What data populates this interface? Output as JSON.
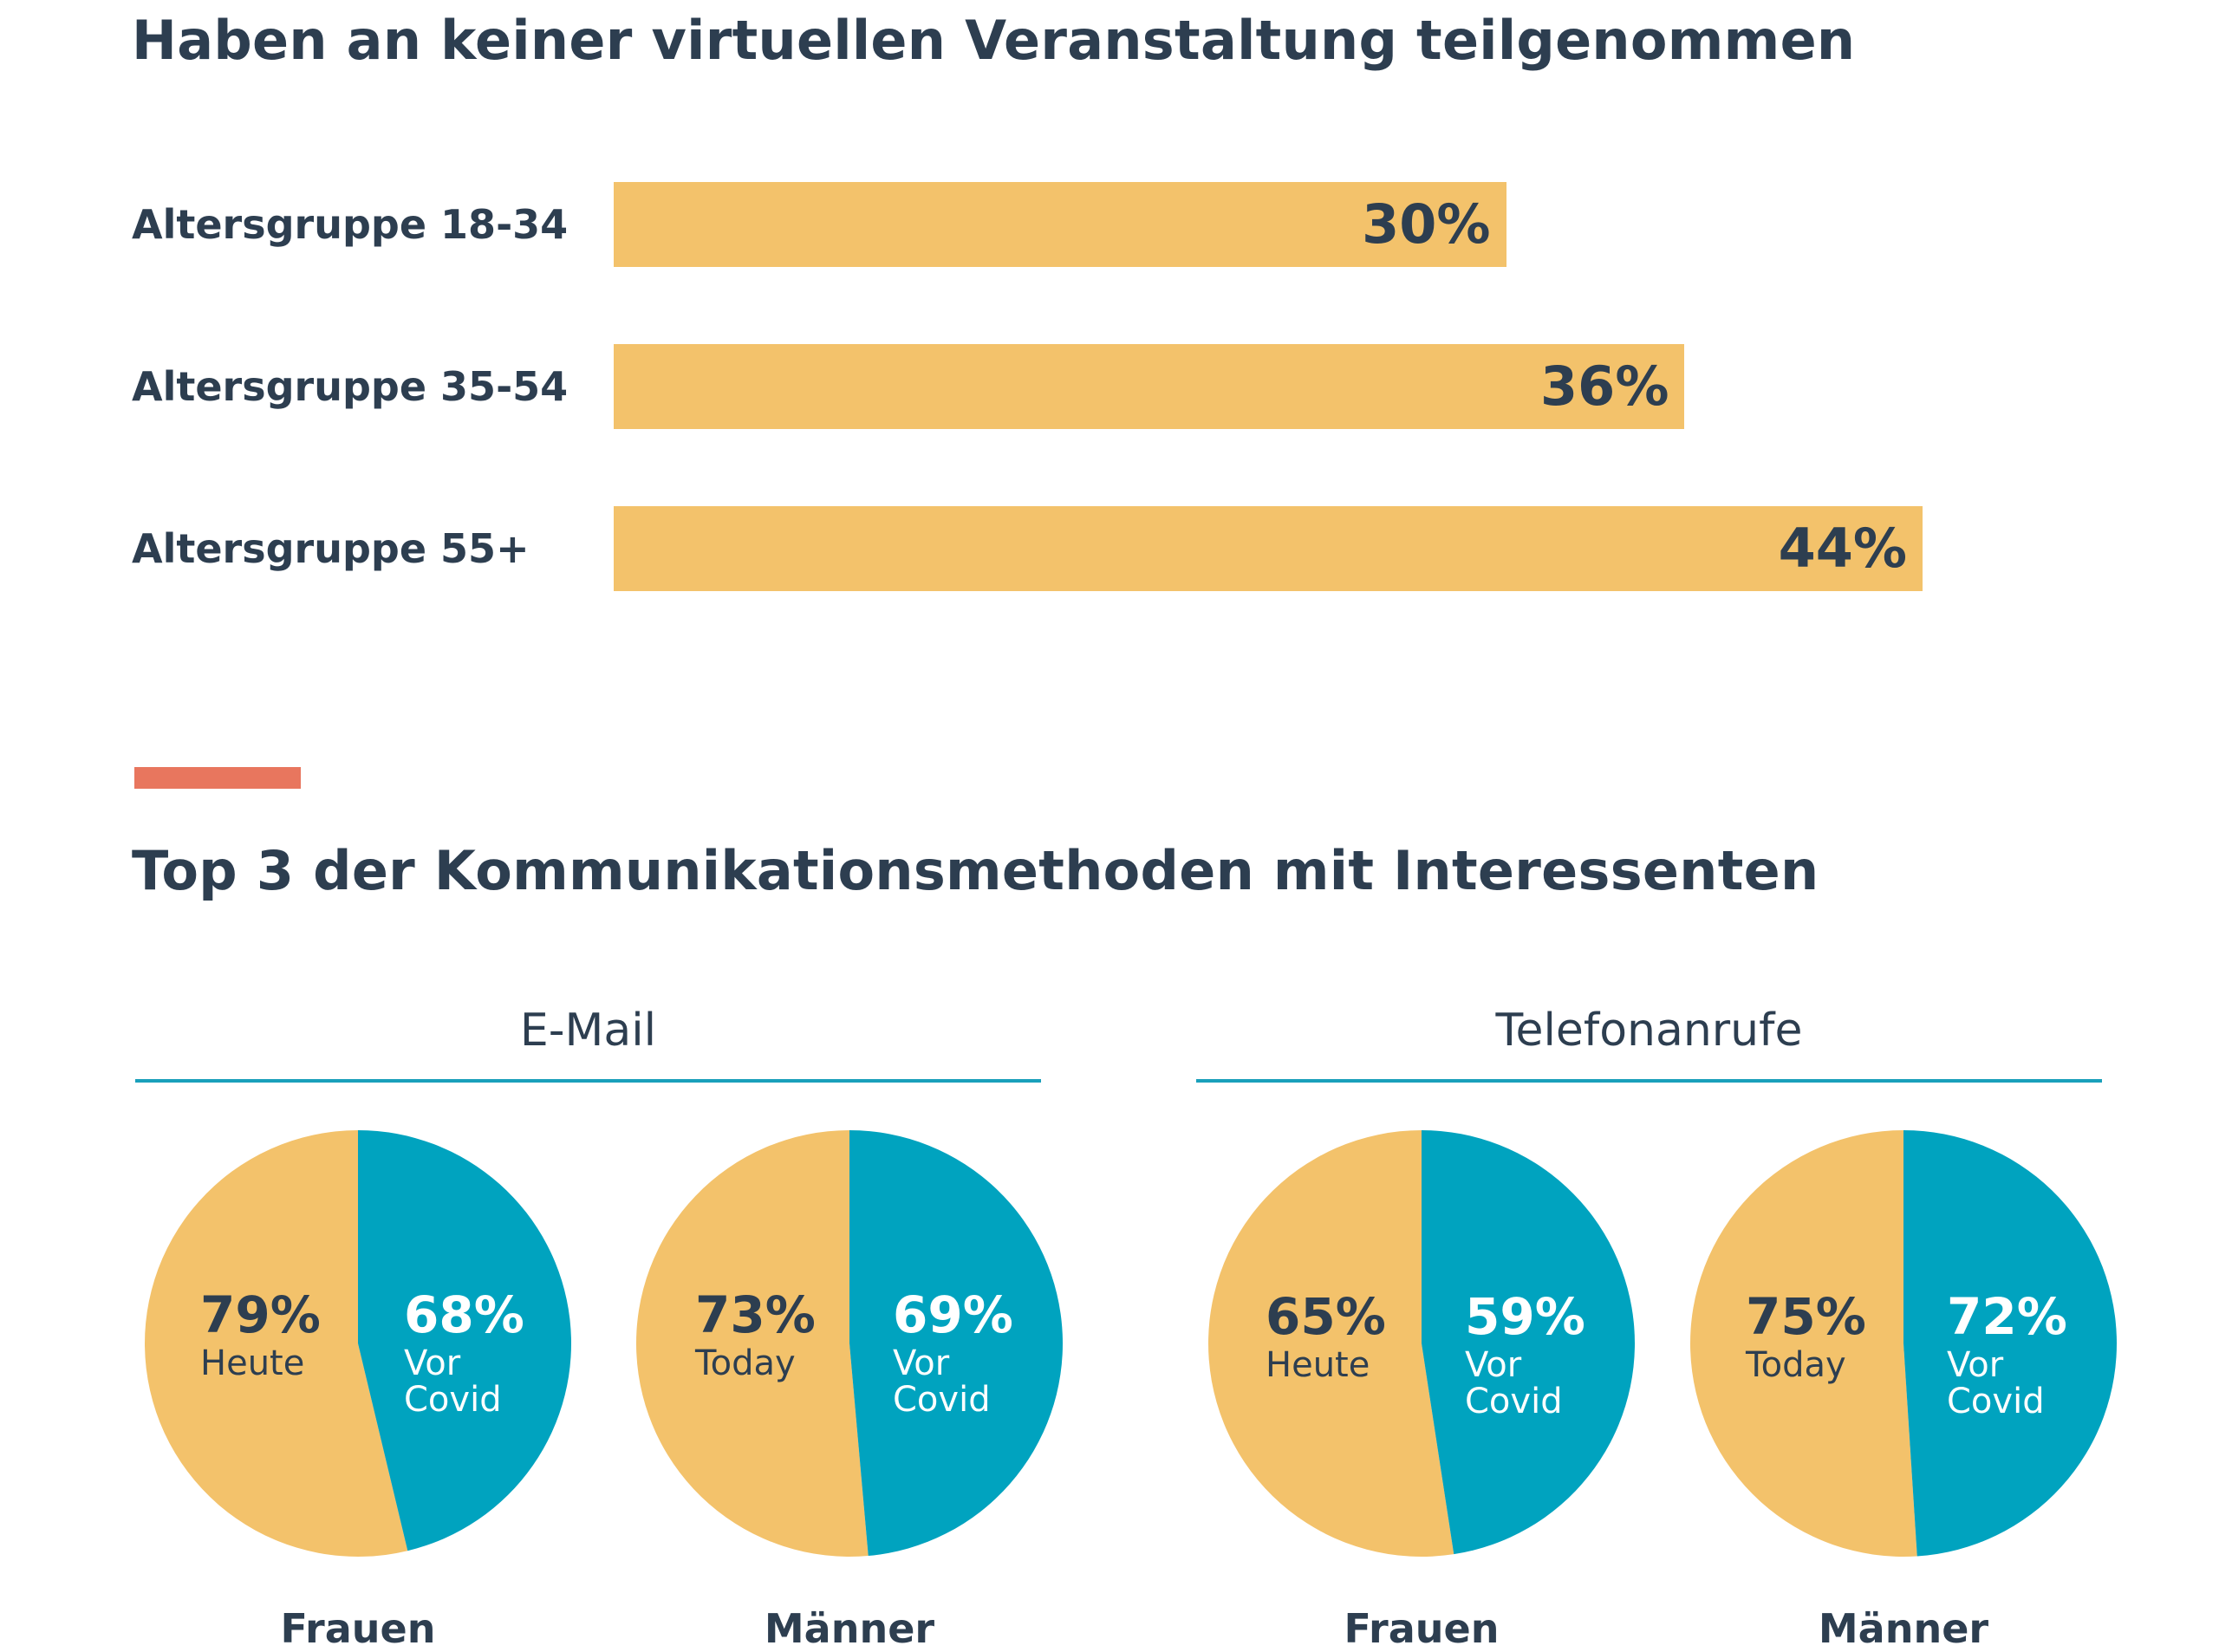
{
  "colors": {
    "heading": "#2d3e50",
    "bar_fill": "#f3c26b",
    "pie_today": "#f3c26b",
    "pie_before": "#00a3bf",
    "accent": "#e8765e",
    "group_rule": "#1aa0bb"
  },
  "section1": {
    "title": "Haben an keiner virtuellen Veranstaltung teilgenommen"
  },
  "section2": {
    "title": "Top 3 der Kommunikationsmethoden mit Interessenten",
    "groups": [
      {
        "label": "E-Mail"
      },
      {
        "label": "Telefonanrufe"
      }
    ]
  },
  "chart_data": [
    {
      "type": "bar",
      "orientation": "horizontal",
      "title": "Haben an keiner virtuellen Veranstaltung teilgenommen",
      "categories": [
        "Altersgruppe 18-34",
        "Altersgruppe 35-54",
        "Altersgruppe 55+"
      ],
      "values": [
        30,
        36,
        44
      ],
      "value_labels": [
        "30%",
        "36%",
        "44%"
      ],
      "xlim": [
        0,
        44
      ],
      "grid": false
    },
    {
      "type": "pie",
      "group": "E-Mail",
      "gender": "Frauen",
      "today_value": 79,
      "today_label": "79%",
      "today_caption": "Heute",
      "before_value": 68,
      "before_label": "68%",
      "before_caption": "Vor Covid"
    },
    {
      "type": "pie",
      "group": "E-Mail",
      "gender": "Männer",
      "today_value": 73,
      "today_label": "73%",
      "today_caption": "Today",
      "before_value": 69,
      "before_label": "69%",
      "before_caption": "Vor Covid"
    },
    {
      "type": "pie",
      "group": "Telefonanrufe",
      "gender": "Frauen",
      "today_value": 65,
      "today_label": "65%",
      "today_caption": "Heute",
      "before_value": 59,
      "before_label": "59%",
      "before_caption": "Vor Covid"
    },
    {
      "type": "pie",
      "group": "Telefonanrufe",
      "gender": "Männer",
      "today_value": 75,
      "today_label": "75%",
      "today_caption": "Today",
      "before_value": 72,
      "before_label": "72%",
      "before_caption": "Vor Covid"
    }
  ]
}
